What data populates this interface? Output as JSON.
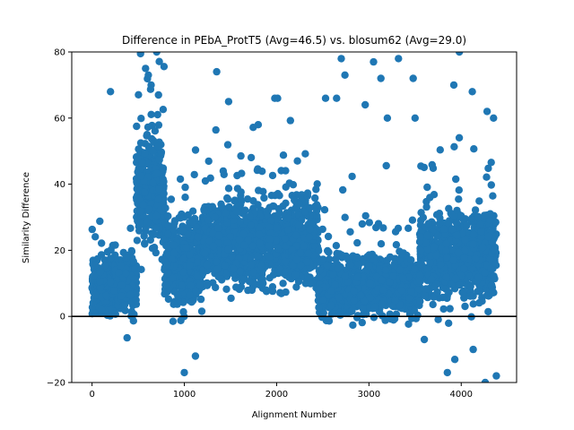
{
  "chart_data": {
    "type": "scatter",
    "title": "Difference in PEbA_ProtT5 (Avg=46.5) vs. blosum62 (Avg=29.0)",
    "xlabel": "Alignment Number",
    "ylabel": "Similarity Difference",
    "xlim": [
      -220,
      4600
    ],
    "ylim": [
      -20,
      80
    ],
    "xticks": [
      0,
      1000,
      2000,
      3000,
      4000
    ],
    "yticks": [
      -20,
      0,
      20,
      40,
      60,
      80
    ],
    "reference_line_y": 0,
    "point_color": "#1f77b4",
    "line_color": "#000000",
    "grid": false,
    "segments": [
      {
        "x_start": 0,
        "x_end": 480,
        "count": 500,
        "y_center": 9,
        "y_spread": 7,
        "y_min": -9,
        "y_max": 44
      },
      {
        "x_start": 480,
        "x_end": 780,
        "count": 380,
        "y_center": 38,
        "y_spread": 13,
        "y_min": -2,
        "y_max": 80
      },
      {
        "x_start": 780,
        "x_end": 1200,
        "count": 420,
        "y_center": 16,
        "y_spread": 11,
        "y_min": -19,
        "y_max": 58
      },
      {
        "x_start": 1200,
        "x_end": 2450,
        "count": 1250,
        "y_center": 22,
        "y_spread": 10,
        "y_min": -3,
        "y_max": 68
      },
      {
        "x_start": 2450,
        "x_end": 3550,
        "count": 1050,
        "y_center": 9,
        "y_spread": 7,
        "y_min": -5,
        "y_max": 79
      },
      {
        "x_start": 3550,
        "x_end": 4380,
        "count": 820,
        "y_center": 18,
        "y_spread": 10,
        "y_min": -20,
        "y_max": 80
      }
    ],
    "outliers": [
      [
        200,
        68
      ],
      [
        580,
        75
      ],
      [
        610,
        73
      ],
      [
        640,
        70
      ],
      [
        700,
        80
      ],
      [
        720,
        67
      ],
      [
        1000,
        -17
      ],
      [
        1120,
        -12
      ],
      [
        1350,
        74
      ],
      [
        1480,
        65
      ],
      [
        1800,
        58
      ],
      [
        1980,
        66
      ],
      [
        2010,
        66
      ],
      [
        2530,
        66
      ],
      [
        2650,
        66
      ],
      [
        2700,
        78
      ],
      [
        2740,
        73
      ],
      [
        2960,
        64
      ],
      [
        3050,
        77
      ],
      [
        3130,
        72
      ],
      [
        3200,
        60
      ],
      [
        3320,
        78
      ],
      [
        3480,
        72
      ],
      [
        3500,
        60
      ],
      [
        3920,
        70
      ],
      [
        3980,
        80
      ],
      [
        4120,
        68
      ],
      [
        4280,
        62
      ],
      [
        4350,
        60
      ],
      [
        4380,
        -18
      ],
      [
        3600,
        -7
      ],
      [
        3850,
        -17
      ],
      [
        3930,
        -13
      ],
      [
        4130,
        -10
      ],
      [
        4260,
        -20
      ]
    ]
  }
}
